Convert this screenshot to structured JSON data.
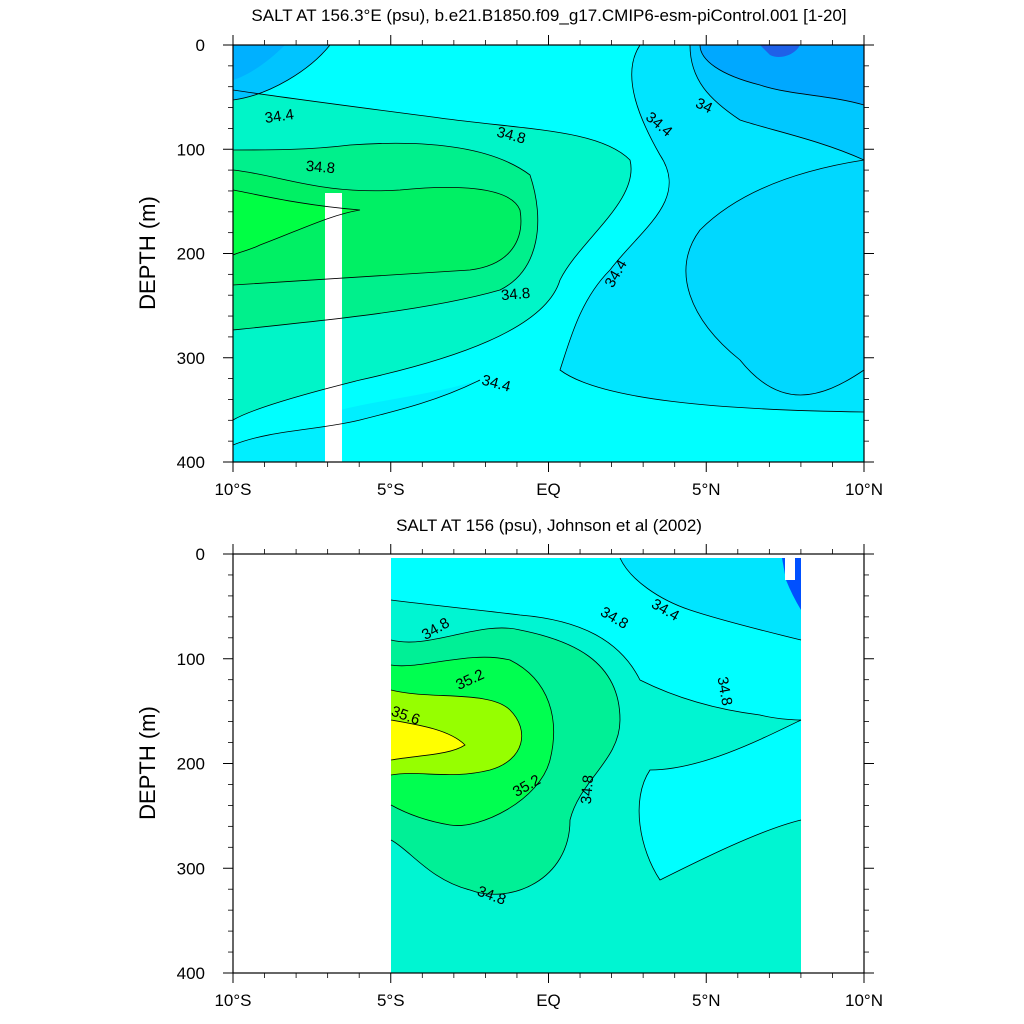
{
  "chart_data": [
    {
      "type": "contour",
      "title": "SALT AT 156.3°E (psu), b.e21.B1850.f09_g17.CMIP6-esm-piControl.001 [1-20]",
      "xlabel": "",
      "ylabel": "DEPTH (m)",
      "x_ticks": [
        "10°S",
        "5°S",
        "EQ",
        "5°N",
        "10°N"
      ],
      "x_tick_values": [
        -10,
        -5,
        0,
        5,
        10
      ],
      "y_ticks": [
        "0",
        "100",
        "200",
        "300",
        "400"
      ],
      "y_tick_values": [
        0,
        100,
        200,
        300,
        400
      ],
      "xlim": [
        -10,
        10
      ],
      "ylim": [
        400,
        0
      ],
      "contour_interval": 0.2,
      "contour_labels": [
        "34.4",
        "34.8",
        "34.8",
        "34.8",
        "34.4",
        "34",
        "34.4",
        "34.4"
      ],
      "colors": [
        "#1e6fe6",
        "#0096ff",
        "#00bfff",
        "#00e1ff",
        "#00ffff",
        "#00f5c8",
        "#00f08c",
        "#00ff55"
      ]
    },
    {
      "type": "contour",
      "title": "SALT AT 156 (psu), Johnson et al (2002)",
      "xlabel": "",
      "ylabel": "DEPTH (m)",
      "x_ticks": [
        "10°S",
        "5°S",
        "EQ",
        "5°N",
        "10°N"
      ],
      "x_tick_values": [
        -10,
        -5,
        0,
        5,
        10
      ],
      "y_ticks": [
        "0",
        "100",
        "200",
        "300",
        "400"
      ],
      "y_tick_values": [
        0,
        100,
        200,
        300,
        400
      ],
      "xlim": [
        -10,
        10
      ],
      "ylim": [
        400,
        0
      ],
      "data_x_range": [
        -5,
        8
      ],
      "contour_interval": 0.2,
      "contour_labels": [
        "34.8",
        "35.2",
        "35.6",
        "35.2",
        "34.8",
        "34.8",
        "34.4",
        "34.8",
        "34.8"
      ],
      "colors": [
        "#00ffff",
        "#00f5d2",
        "#00f096",
        "#00ff50",
        "#96ff00",
        "#ffff00",
        "#0050ff"
      ]
    }
  ]
}
